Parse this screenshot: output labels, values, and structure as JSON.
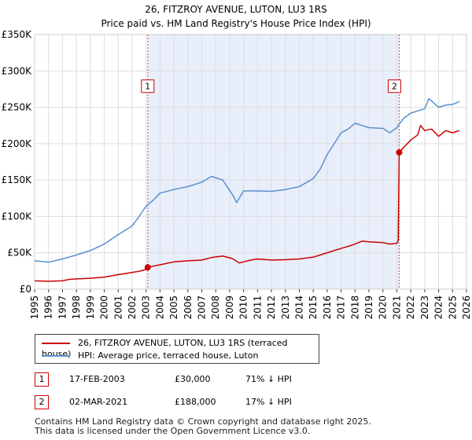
{
  "chart_data": {
    "type": "line",
    "title": "26, FITZROY AVENUE, LUTON, LU3 1RS",
    "subtitle": "Price paid vs. HM Land Registry's House Price Index (HPI)",
    "xlim": [
      1995,
      2026
    ],
    "ylim": [
      0,
      350000
    ],
    "x_ticks": [
      "1995",
      "1996",
      "1997",
      "1998",
      "1999",
      "2000",
      "2001",
      "2002",
      "2003",
      "2004",
      "2005",
      "2006",
      "2007",
      "2008",
      "2009",
      "2010",
      "2011",
      "2012",
      "2013",
      "2014",
      "2015",
      "2016",
      "2017",
      "2018",
      "2019",
      "2020",
      "2021",
      "2022",
      "2023",
      "2024",
      "2025",
      "2026"
    ],
    "y_ticks": [
      {
        "value": 0,
        "label": "£0"
      },
      {
        "value": 50000,
        "label": "£50K"
      },
      {
        "value": 100000,
        "label": "£100K"
      },
      {
        "value": 150000,
        "label": "£150K"
      },
      {
        "value": 200000,
        "label": "£200K"
      },
      {
        "value": 250000,
        "label": "£250K"
      },
      {
        "value": 300000,
        "label": "£300K"
      },
      {
        "value": 350000,
        "label": "£350K"
      }
    ],
    "shaded_region": [
      2003.12,
      2021.17
    ],
    "series": [
      {
        "name": "26, FITZROY AVENUE, LUTON, LU3 1RS (terraced house)",
        "color": "#cc0000",
        "x": [
          1995,
          1996,
          1997,
          1997.5,
          1998,
          1999,
          2000,
          2001,
          2002,
          2002.5,
          2003.0,
          2003.12,
          2004,
          2005,
          2006,
          2007,
          2007.7,
          2008.5,
          2009.2,
          2009.7,
          2010.5,
          2011,
          2012,
          2013,
          2014,
          2015,
          2015.5,
          2016.5,
          2017,
          2017.7,
          2018,
          2018.5,
          2019,
          2020,
          2020.5,
          2021.0,
          2021.1,
          2021.17,
          2021.5,
          2022,
          2022.5,
          2022.7,
          2023,
          2023.2,
          2023.5,
          2024,
          2024.5,
          2025,
          2025.5
        ],
        "y": [
          11500,
          10800,
          11500,
          13500,
          14000,
          15000,
          16500,
          20000,
          23000,
          24500,
          27000,
          30000,
          33500,
          37500,
          39000,
          40000,
          43500,
          45500,
          42000,
          36000,
          40000,
          41500,
          40000,
          40500,
          41500,
          44000,
          47000,
          53000,
          56000,
          60000,
          62000,
          66000,
          65000,
          64000,
          62000,
          63000,
          67000,
          188000,
          195000,
          205000,
          212000,
          225000,
          218000,
          219000,
          220000,
          210000,
          218000,
          215000,
          218000
        ]
      },
      {
        "name": "HPI: Average price, terraced house, Luton",
        "color": "#5b8fd0",
        "x": [
          1995,
          1996,
          1997,
          1998,
          1999,
          2000,
          2001,
          2002,
          2002.5,
          2003,
          2003.5,
          2004,
          2005,
          2006,
          2007,
          2007.7,
          2008.5,
          2009.2,
          2009.5,
          2010,
          2011,
          2012,
          2013,
          2014,
          2015,
          2015.5,
          2016,
          2016.5,
          2017,
          2017.5,
          2018,
          2018.5,
          2019,
          2020,
          2020.5,
          2021,
          2021.17,
          2021.5,
          2022,
          2022.5,
          2023,
          2023.3,
          2023.7,
          2024,
          2024.5,
          2025,
          2025.5
        ],
        "y": [
          39000,
          37000,
          41500,
          47000,
          53000,
          62000,
          75000,
          87000,
          100000,
          114000,
          122000,
          132000,
          137000,
          141000,
          147000,
          155000,
          150000,
          130000,
          119000,
          135000,
          135000,
          134500,
          137000,
          141000,
          152000,
          165000,
          185000,
          200000,
          215000,
          220000,
          228000,
          225000,
          222000,
          221000,
          215000,
          222000,
          227000,
          235000,
          242000,
          245000,
          248000,
          262000,
          255000,
          250000,
          253000,
          254000,
          258000
        ]
      }
    ],
    "sales": [
      {
        "label": "1",
        "x": 2003.12,
        "y": 30000
      },
      {
        "label": "2",
        "x": 2021.17,
        "y": 188000
      }
    ]
  },
  "legend": {
    "property_label": "26, FITZROY AVENUE, LUTON, LU3 1RS (terraced house)",
    "hpi_label": "HPI: Average price, terraced house, Luton"
  },
  "annotations": [
    {
      "num": "1",
      "date": "17-FEB-2003",
      "price": "£30,000",
      "hpi": "71% ↓ HPI"
    },
    {
      "num": "2",
      "date": "02-MAR-2021",
      "price": "£188,000",
      "hpi": "17% ↓ HPI"
    }
  ],
  "footer": {
    "line1": "Contains HM Land Registry data © Crown copyright and database right 2025.",
    "line2": "This data is licensed under the Open Government Licence v3.0."
  },
  "colors": {
    "red": "#cc0000",
    "blue": "#5b8fd0",
    "shade": "#e8eefa",
    "grid": "#dddddd"
  }
}
